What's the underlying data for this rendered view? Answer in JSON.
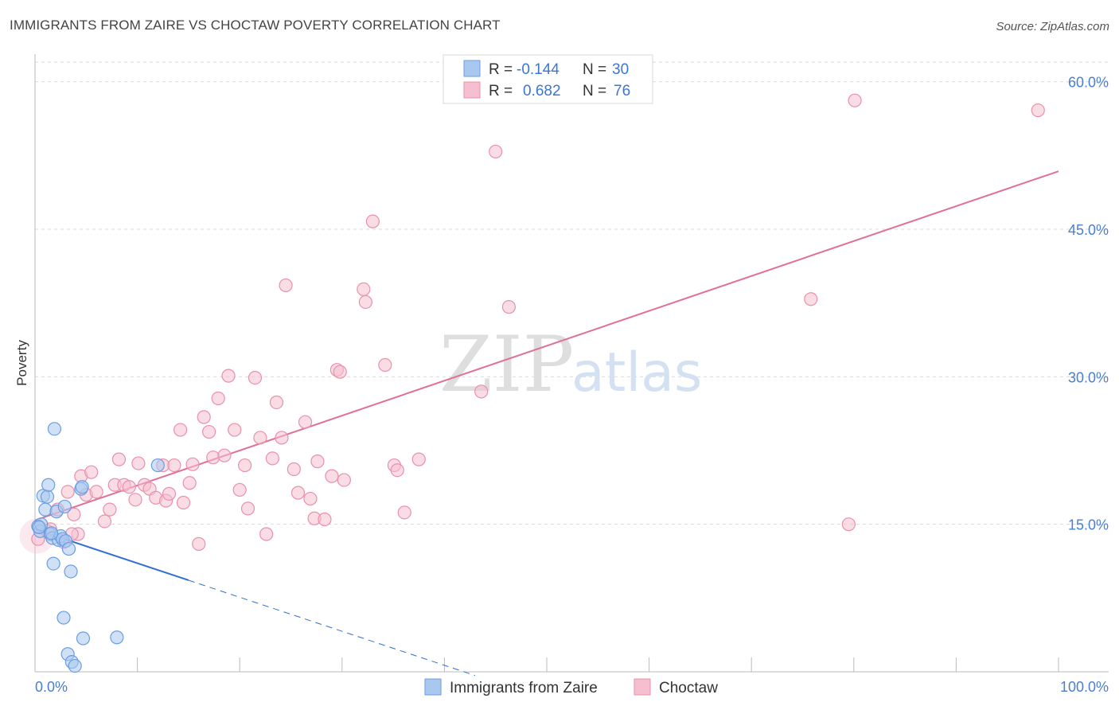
{
  "title": "IMMIGRANTS FROM ZAIRE VS CHOCTAW POVERTY CORRELATION CHART",
  "source": "Source: ZipAtlas.com",
  "chart_data": {
    "type": "scatter",
    "title": "IMMIGRANTS FROM ZAIRE VS CHOCTAW POVERTY CORRELATION CHART",
    "xlabel": "",
    "ylabel": "Poverty",
    "xlim": [
      0,
      100
    ],
    "ylim": [
      0,
      62
    ],
    "x_tick_labels": {
      "left": "0.0%",
      "right": "100.0%"
    },
    "y_ticks": [
      {
        "value": 15,
        "label": "15.0%"
      },
      {
        "value": 30,
        "label": "30.0%"
      },
      {
        "value": 45,
        "label": "45.0%"
      },
      {
        "value": 60,
        "label": "60.0%"
      }
    ],
    "grid": true,
    "legend": {
      "entries": [
        {
          "name": "Immigrants from Zaire",
          "r_label": "R =",
          "r_value": "-0.144",
          "n_label": "N =",
          "n_value": "30"
        },
        {
          "name": "Choctaw",
          "r_label": "R =",
          "r_value": "0.682",
          "n_label": "N =",
          "n_value": "76"
        }
      ]
    },
    "watermark": {
      "zip": "ZIP",
      "atlas": "atlas"
    },
    "colors": {
      "zaire_fill": "#a9c8f0",
      "zaire_stroke": "#6a9ee0",
      "zaire_line": "#2f6fcf",
      "choctaw_fill": "#f6bfd0",
      "choctaw_stroke": "#e890ae",
      "choctaw_line": "#e07099",
      "grid": "#d9d9d9",
      "tick_label": "#4a7fd0"
    },
    "series": [
      {
        "name": "Immigrants from Zaire",
        "points": [
          [
            0.3,
            14.8
          ],
          [
            0.5,
            14.3
          ],
          [
            0.6,
            15.0
          ],
          [
            0.8,
            17.9
          ],
          [
            1.0,
            16.5
          ],
          [
            1.2,
            17.8
          ],
          [
            1.3,
            19.0
          ],
          [
            1.5,
            14.0
          ],
          [
            1.7,
            13.6
          ],
          [
            1.8,
            11.0
          ],
          [
            1.9,
            24.7
          ],
          [
            2.1,
            16.3
          ],
          [
            2.3,
            13.4
          ],
          [
            2.5,
            13.8
          ],
          [
            2.7,
            13.5
          ],
          [
            2.8,
            5.5
          ],
          [
            2.9,
            16.8
          ],
          [
            3.0,
            13.3
          ],
          [
            3.2,
            1.8
          ],
          [
            3.3,
            12.5
          ],
          [
            3.5,
            10.2
          ],
          [
            3.6,
            1.0
          ],
          [
            3.9,
            0.6
          ],
          [
            4.5,
            18.6
          ],
          [
            4.6,
            18.8
          ],
          [
            4.7,
            3.4
          ],
          [
            8.0,
            3.5
          ],
          [
            12.0,
            21.0
          ],
          [
            0.4,
            14.7
          ],
          [
            1.6,
            14.1
          ]
        ],
        "trend": {
          "x_start": 0,
          "y_start": 14.5,
          "x_solid_end": 15,
          "x_dash_end": 43,
          "slope": -0.346
        }
      },
      {
        "name": "Choctaw",
        "points": [
          [
            0.3,
            13.5
          ],
          [
            1.2,
            14.3
          ],
          [
            1.5,
            14.5
          ],
          [
            2.2,
            16.5
          ],
          [
            2.8,
            13.2
          ],
          [
            3.2,
            18.3
          ],
          [
            3.8,
            16.0
          ],
          [
            4.2,
            14.0
          ],
          [
            4.5,
            19.9
          ],
          [
            5.0,
            18.0
          ],
          [
            5.5,
            20.3
          ],
          [
            6.0,
            18.3
          ],
          [
            6.8,
            15.3
          ],
          [
            7.3,
            16.5
          ],
          [
            7.8,
            19.0
          ],
          [
            8.2,
            21.6
          ],
          [
            8.7,
            19.0
          ],
          [
            9.2,
            18.8
          ],
          [
            9.8,
            17.5
          ],
          [
            10.1,
            21.2
          ],
          [
            10.7,
            19.0
          ],
          [
            11.2,
            18.6
          ],
          [
            11.8,
            17.7
          ],
          [
            12.5,
            21.0
          ],
          [
            12.8,
            17.4
          ],
          [
            13.1,
            18.1
          ],
          [
            13.6,
            21.0
          ],
          [
            14.2,
            24.6
          ],
          [
            14.5,
            17.2
          ],
          [
            15.1,
            19.2
          ],
          [
            15.4,
            21.1
          ],
          [
            16.0,
            13.0
          ],
          [
            16.5,
            25.9
          ],
          [
            17.0,
            24.4
          ],
          [
            17.4,
            21.8
          ],
          [
            17.9,
            27.8
          ],
          [
            18.5,
            22.0
          ],
          [
            18.9,
            30.1
          ],
          [
            19.5,
            24.6
          ],
          [
            20.0,
            18.5
          ],
          [
            20.5,
            21.0
          ],
          [
            20.8,
            16.6
          ],
          [
            21.5,
            29.9
          ],
          [
            22.0,
            23.8
          ],
          [
            22.6,
            14.0
          ],
          [
            23.2,
            21.7
          ],
          [
            23.6,
            27.4
          ],
          [
            24.1,
            23.8
          ],
          [
            24.5,
            39.3
          ],
          [
            25.3,
            20.6
          ],
          [
            25.7,
            18.2
          ],
          [
            26.4,
            25.4
          ],
          [
            26.9,
            17.6
          ],
          [
            27.3,
            15.6
          ],
          [
            27.6,
            21.4
          ],
          [
            28.3,
            15.5
          ],
          [
            29.0,
            19.9
          ],
          [
            29.5,
            30.7
          ],
          [
            29.8,
            30.5
          ],
          [
            30.2,
            19.5
          ],
          [
            32.1,
            38.9
          ],
          [
            32.3,
            37.6
          ],
          [
            33.0,
            45.8
          ],
          [
            34.2,
            31.2
          ],
          [
            35.1,
            21.0
          ],
          [
            35.4,
            20.5
          ],
          [
            36.1,
            16.2
          ],
          [
            37.5,
            21.6
          ],
          [
            43.6,
            28.5
          ],
          [
            45.0,
            52.9
          ],
          [
            46.3,
            37.1
          ],
          [
            75.8,
            37.9
          ],
          [
            79.5,
            15.0
          ],
          [
            80.1,
            58.1
          ],
          [
            98.0,
            57.1
          ],
          [
            3.6,
            14.0
          ]
        ],
        "trend": {
          "x_start": 0,
          "y_start": 15.4,
          "x_end": 100,
          "y_end": 50.9
        }
      }
    ]
  }
}
